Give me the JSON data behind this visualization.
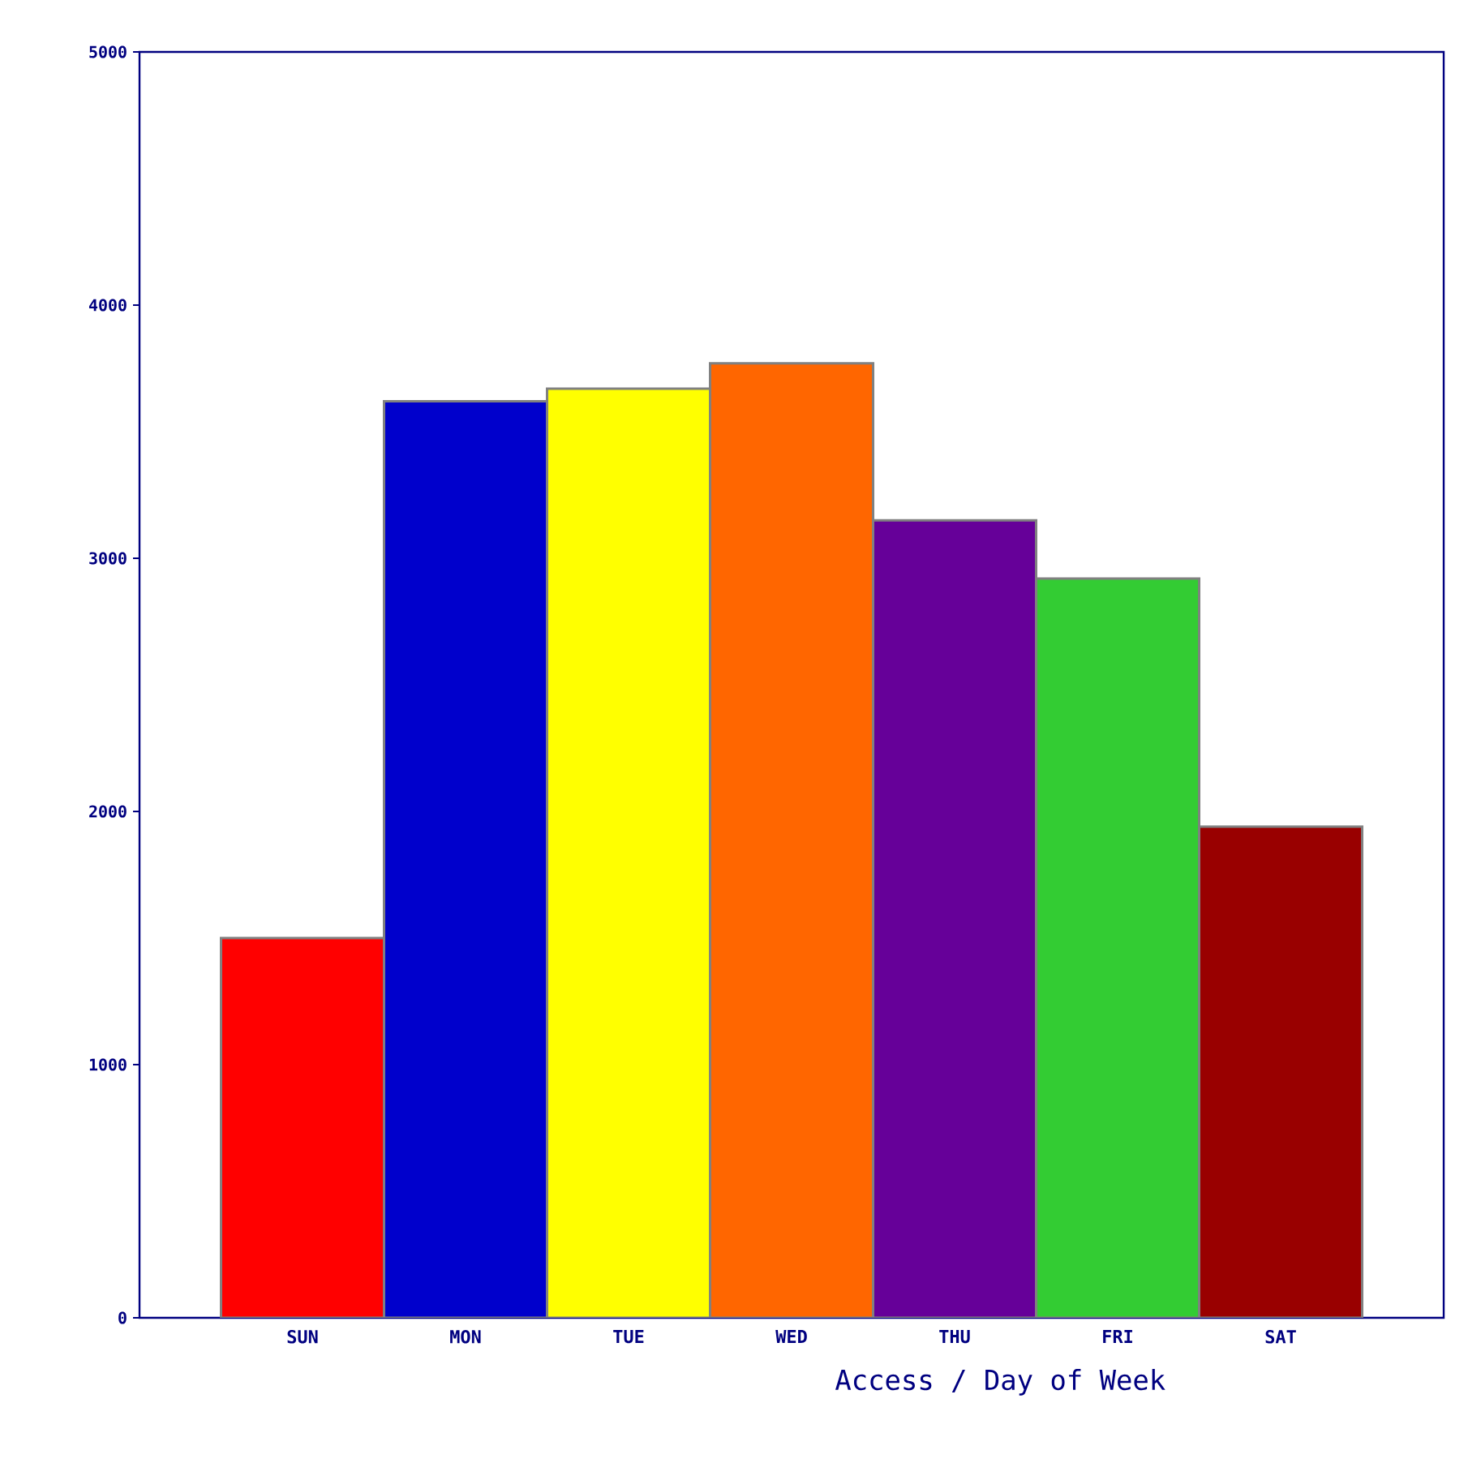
{
  "chart_data": {
    "type": "bar",
    "xlabel": "Access / Day of Week",
    "categories": [
      "SUN",
      "MON",
      "TUE",
      "WED",
      "THU",
      "FRI",
      "SAT"
    ],
    "values": [
      1500,
      3620,
      3670,
      3770,
      3150,
      2920,
      1940
    ],
    "colors": [
      "#ff0000",
      "#0000cc",
      "#ffff00",
      "#ff6600",
      "#660099",
      "#33cc33",
      "#990000"
    ],
    "ylim": [
      0,
      5000
    ],
    "yticks": [
      0,
      1000,
      2000,
      3000,
      4000,
      5000
    ]
  }
}
